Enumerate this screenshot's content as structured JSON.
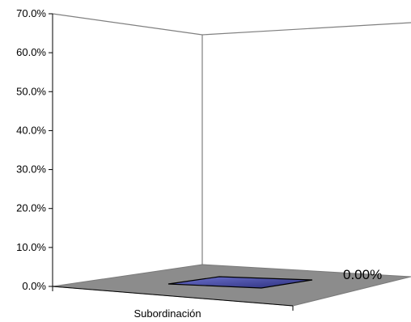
{
  "chart_data": {
    "type": "bar",
    "categories": [
      "Subordinación"
    ],
    "series": [
      {
        "values": [
          0.0
        ]
      }
    ],
    "data_labels": [
      "0.00%"
    ],
    "ylim": [
      0,
      70
    ],
    "y_ticks": [
      "0.0%",
      "10.0%",
      "20.0%",
      "30.0%",
      "40.0%",
      "50.0%",
      "60.0%",
      "70.0%"
    ],
    "grid": false,
    "legend": "none",
    "three_d": true,
    "colors": {
      "floor": "#8c8c8c",
      "bar_top": "#4a4fa6",
      "bar_edge": "#000000",
      "walls": "#808080",
      "axis": "#000000"
    }
  }
}
